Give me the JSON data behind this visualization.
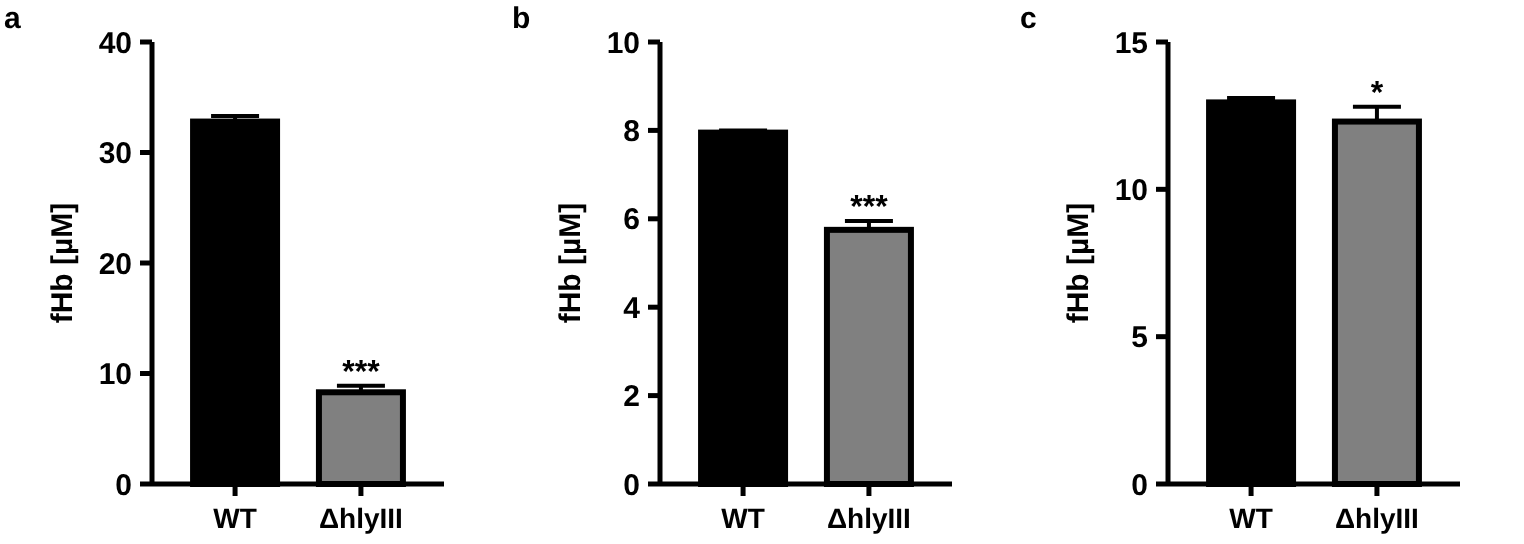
{
  "chart_data": [
    {
      "type": "bar",
      "title": "a",
      "ylabel": "fHb [µM]",
      "categories": [
        "WT",
        "ΔhlyIII"
      ],
      "values": [
        32.8,
        8.3
      ],
      "errors": [
        0.5,
        0.6
      ],
      "colors": [
        "#000000",
        "#808080"
      ],
      "ylim": [
        0,
        40
      ],
      "yticks": [
        0,
        10,
        20,
        30,
        40
      ],
      "annotations": [
        {
          "text": "***",
          "x": "ΔhlyIII",
          "y": 8.9
        }
      ]
    },
    {
      "type": "bar",
      "title": "b",
      "ylabel": "fHb [µM]",
      "categories": [
        "WT",
        "ΔhlyIII"
      ],
      "values": [
        7.95,
        5.75
      ],
      "errors": [
        0.05,
        0.2
      ],
      "colors": [
        "#000000",
        "#808080"
      ],
      "ylim": [
        0,
        10
      ],
      "yticks": [
        0,
        2,
        4,
        6,
        8,
        10
      ],
      "annotations": [
        {
          "text": "***",
          "x": "ΔhlyIII",
          "y": 5.95
        }
      ]
    },
    {
      "type": "bar",
      "title": "c",
      "ylabel": "fHb [µM]",
      "categories": [
        "WT",
        "ΔhlyIII"
      ],
      "values": [
        12.95,
        12.3
      ],
      "errors": [
        0.15,
        0.5
      ],
      "colors": [
        "#000000",
        "#808080"
      ],
      "ylim": [
        0,
        15
      ],
      "yticks": [
        0,
        5,
        10,
        15
      ],
      "annotations": [
        {
          "text": "*",
          "x": "ΔhlyIII",
          "y": 12.8
        }
      ]
    }
  ]
}
